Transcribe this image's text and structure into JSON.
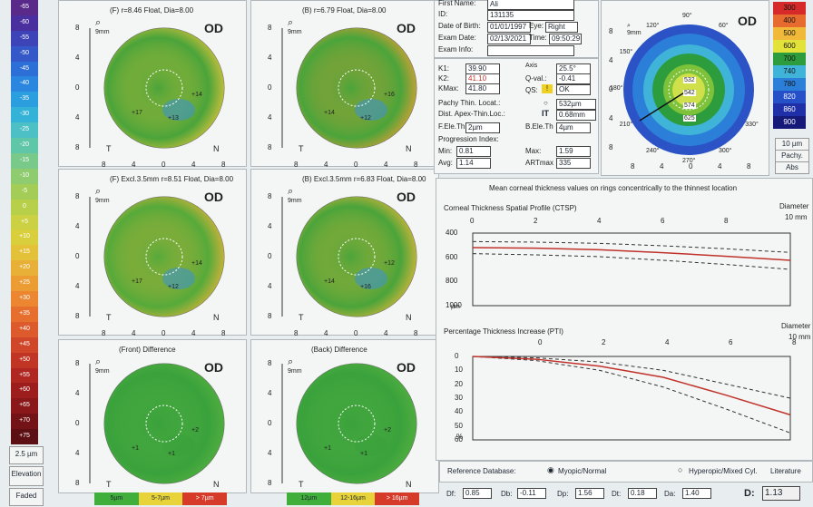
{
  "left_scale": {
    "labels": [
      "-65",
      "-60",
      "-55",
      "-50",
      "-45",
      "-40",
      "-35",
      "-30",
      "-25",
      "-20",
      "-15",
      "-10",
      "-5",
      "0",
      "+5",
      "+10",
      "+15",
      "+20",
      "+25",
      "+30",
      "+35",
      "+40",
      "+45",
      "+50",
      "+55",
      "+60",
      "+65",
      "+70",
      "+75"
    ],
    "colors": [
      "#5a2a8a",
      "#4a2f9e",
      "#3c44b8",
      "#3558c8",
      "#2c6fd6",
      "#2a86de",
      "#2b9ee0",
      "#35b2d8",
      "#4cc0c4",
      "#5fc7a8",
      "#78c98a",
      "#8fcc6f",
      "#a3cd57",
      "#b8cf4a",
      "#cbd142",
      "#d9cf3c",
      "#e3c23a",
      "#e8b036",
      "#eb9c33",
      "#ec8631",
      "#e66f2e",
      "#dc5a2b",
      "#cf4628",
      "#c13524",
      "#b02721",
      "#9d1d1d",
      "#8a171a",
      "#741317",
      "#5d1014"
    ],
    "step_label": "2.5 µm",
    "mode_label": "Elevation",
    "fit_label": "Faded"
  },
  "maps": [
    {
      "title": "(F) r=8.46 Float, Dia=8.00",
      "eye": "OD",
      "zoom": "9mm",
      "ticks": [
        "8",
        "4",
        "0",
        "4",
        "8"
      ],
      "t": "T",
      "n": "N",
      "nums": [
        "+17",
        "+14",
        "+13"
      ]
    },
    {
      "title": "(B) r=6.79 Float, Dia=8.00",
      "eye": "OD",
      "zoom": "9mm",
      "ticks": [
        "8",
        "4",
        "0",
        "4",
        "8"
      ],
      "t": "T",
      "n": "N",
      "nums": [
        "+14",
        "+16",
        "+12"
      ]
    },
    {
      "title": "(F) Excl.3.5mm r=8.51 Float, Dia=8.00",
      "eye": "OD",
      "zoom": "9mm",
      "ticks": [
        "8",
        "4",
        "0",
        "4",
        "8"
      ],
      "t": "T",
      "n": "N",
      "nums": [
        "+17",
        "+14",
        "+12"
      ]
    },
    {
      "title": "(B) Excl.3.5mm r=6.83 Float, Dia=8.00",
      "eye": "OD",
      "zoom": "9mm",
      "ticks": [
        "8",
        "4",
        "0",
        "4",
        "8"
      ],
      "t": "T",
      "n": "N",
      "nums": [
        "+14",
        "+12",
        "+16"
      ]
    },
    {
      "title": "(Front) Difference",
      "eye": "OD",
      "zoom": "9mm",
      "ticks": [
        "8",
        "4",
        "0",
        "4",
        "8"
      ],
      "t": "T",
      "n": "N",
      "nums": [
        "+1",
        "+2",
        "+1"
      ]
    },
    {
      "title": "(Back) Difference",
      "eye": "OD",
      "zoom": "9mm",
      "ticks": [
        "8",
        "4",
        "0",
        "4",
        "8"
      ],
      "t": "T",
      "n": "N",
      "nums": [
        "+1",
        "+2",
        "+1"
      ]
    }
  ],
  "legend_left": [
    "5µm",
    "5-7µm",
    "> 7µm"
  ],
  "legend_right": [
    "12µm",
    "12-16µm",
    "> 16µm"
  ],
  "patient": {
    "first_name_label": "First Name:",
    "first_name": "Ali",
    "id_label": "ID:",
    "id": "131135",
    "dob_label": "Date of Birth:",
    "dob": "01/01/1997",
    "eye_label": "Eye:",
    "eye": "Right",
    "exam_date_label": "Exam Date:",
    "exam_date": "02/13/2021",
    "time_label": "Time:",
    "time": "09:50:29",
    "exam_info_label": "Exam Info:",
    "exam_info": ""
  },
  "kvals": {
    "k1_label": "K1:",
    "k1": "39.90",
    "k2_label": "K2:",
    "k2": "41.10",
    "kmax_label": "KMax:",
    "kmax": "41.80",
    "axis_label": "Axis",
    "axis": "25.5°",
    "qval_label": "Q-val.:",
    "qval": "-0.41",
    "qs_label": "QS:",
    "qs": "OK",
    "pachy_thin_label": "Pachy Thin. Locat.:",
    "pachy_thin": "532µm",
    "dist_apex_label": "Dist. Apex-Thin.Loc.:",
    "dist_apex": "0.68mm",
    "fele_label": "F.Ele.Th",
    "fele": "2µm",
    "bele_label": "B.Ele.Th",
    "bele": "4µm",
    "prog_label": "Progression Index:",
    "min_label": "Min:",
    "min": "0.81",
    "max_label": "Max:",
    "max": "1.59",
    "avg_label": "Avg:",
    "avg": "1.14",
    "art_label": "ARTmax",
    "art": "335"
  },
  "pachy_map": {
    "eye": "OD",
    "zoom": "9mm",
    "values": [
      "532",
      "542",
      "574",
      "625"
    ],
    "angles": [
      "90°",
      "120°",
      "60°",
      "150°",
      "180°",
      "210°",
      "240°",
      "270°",
      "300°",
      "330°"
    ],
    "ticks": [
      "8",
      "4",
      "0",
      "4",
      "8"
    ]
  },
  "right_scale": {
    "labels": [
      "300",
      "400",
      "500",
      "600",
      "700",
      "740",
      "780",
      "820",
      "860",
      "900"
    ],
    "colors": [
      "#d62a2a",
      "#e76a2e",
      "#f0b93a",
      "#e2e23a",
      "#2c9c3c",
      "#3fb4d8",
      "#2c7fd8",
      "#2550c8",
      "#1f2fa8",
      "#151a78"
    ],
    "step": "10 µm",
    "mode": "Pachy.",
    "abs": "Abs"
  },
  "ctsp": {
    "header": "Mean corneal thickness values on rings concentrically to the thinnest location",
    "title": "Corneal Thickness Spatial Profile (CTSP)",
    "diameter_label": "Diameter",
    "x_unit": "10 mm",
    "x_ticks": [
      "0",
      "2",
      "4",
      "6",
      "8"
    ],
    "y_ticks": [
      "400",
      "600",
      "800",
      "1000"
    ],
    "y_unit": "µm"
  },
  "pti": {
    "title": "Percentage Thickness Increase (PTI)",
    "diameter_label": "Diameter",
    "x_unit": "10 mm",
    "x_ticks": [
      "0",
      "2",
      "4",
      "6",
      "8"
    ],
    "y_ticks": [
      "0",
      "10",
      "20",
      "30",
      "40",
      "50",
      "60"
    ],
    "y_unit": "%"
  },
  "reference": {
    "label": "Reference Database:",
    "opt1": "Myopic/Normal",
    "opt2": "Hyperopic/Mixed Cyl.",
    "opt3": "Literature"
  },
  "d_values": {
    "df_label": "Df:",
    "df": "0.85",
    "db_label": "Db:",
    "db": "-0.11",
    "dp_label": "Dp:",
    "dp": "1.56",
    "dt_label": "Dt:",
    "dt": "0.18",
    "da_label": "Da:",
    "da": "1.40",
    "d_label": "D:",
    "d": "1.13"
  }
}
